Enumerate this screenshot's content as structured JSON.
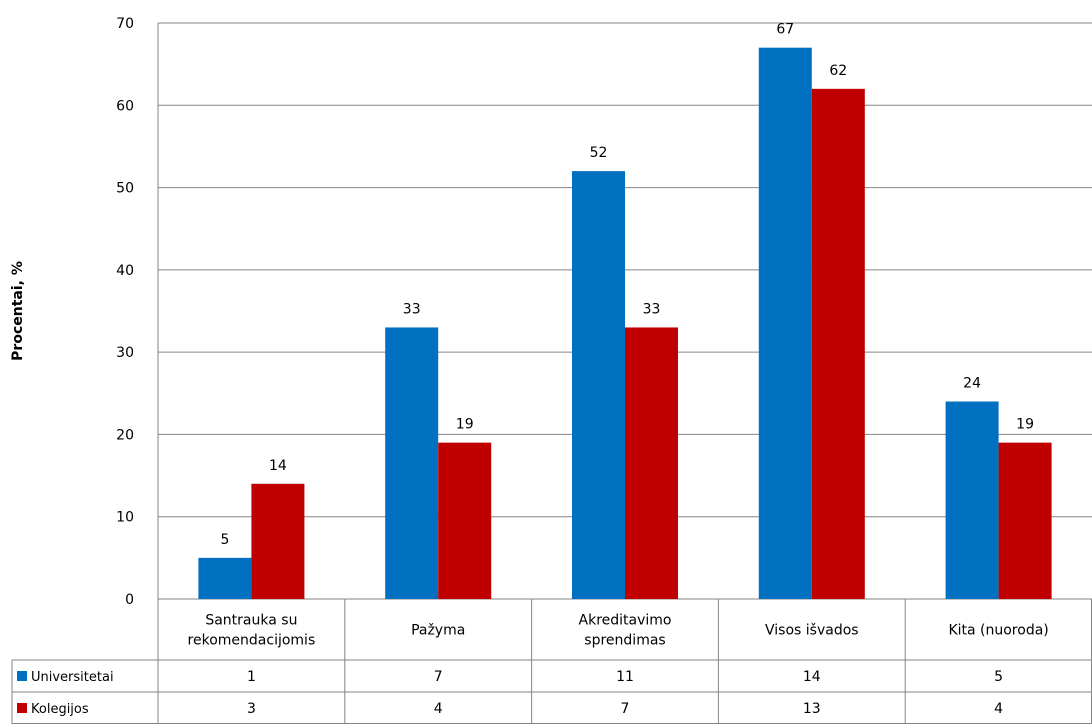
{
  "chart_data": {
    "type": "bar",
    "ylabel": "Procentai, %",
    "ylim": [
      0,
      70
    ],
    "yticks": [
      "0",
      "10",
      "20",
      "30",
      "40",
      "50",
      "60",
      "70"
    ],
    "grid": true,
    "categories": [
      [
        "Santrauka su",
        "rekomendacijomis"
      ],
      [
        "Pažyma"
      ],
      [
        "Akreditavimo",
        "sprendimas"
      ],
      [
        "Visos išvados"
      ],
      [
        "Kita (nuoroda)"
      ]
    ],
    "series": [
      {
        "name": "Universitetai",
        "color": "#0070C0",
        "values": [
          5,
          33,
          52,
          67,
          24
        ],
        "table": [
          "1",
          "7",
          "11",
          "14",
          "5"
        ]
      },
      {
        "name": "Kolegijos",
        "color": "#C00000",
        "values": [
          14,
          19,
          33,
          62,
          19
        ],
        "table": [
          "3",
          "4",
          "7",
          "13",
          "4"
        ]
      }
    ]
  }
}
